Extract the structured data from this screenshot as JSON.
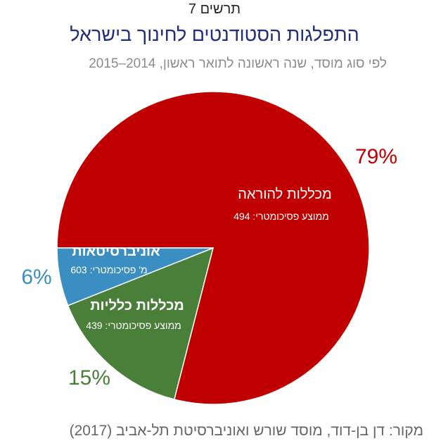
{
  "figure_label": "תרשים 7",
  "source": "מקור:  דן בן-דוד, מוסד שורש ואוניברסיטת תל-אביב (2017)",
  "chart_data": {
    "type": "pie",
    "title": "התפלגות הסטודנטים לחינוך בישראל",
    "subtitle": "לפי סוג מוסד, שנה ראשונה לתואר ראשון, 2014–2015",
    "slices": [
      {
        "name": "מכללות להוראה",
        "value": 79,
        "percent_label": "79%",
        "detail": "ממוצע פסיכומטרי: 494",
        "color": "#c00000"
      },
      {
        "name": "מכללות כלליות",
        "value": 15,
        "percent_label": "15%",
        "detail": "ממוצע פסיכומטרי: 439",
        "color": "#4a7f3a"
      },
      {
        "name": "אוניברסיטאות",
        "value": 6,
        "percent_label": "6%",
        "detail": "מ' פסיכומטרי: 603",
        "color": "#3a8ec2"
      }
    ]
  }
}
